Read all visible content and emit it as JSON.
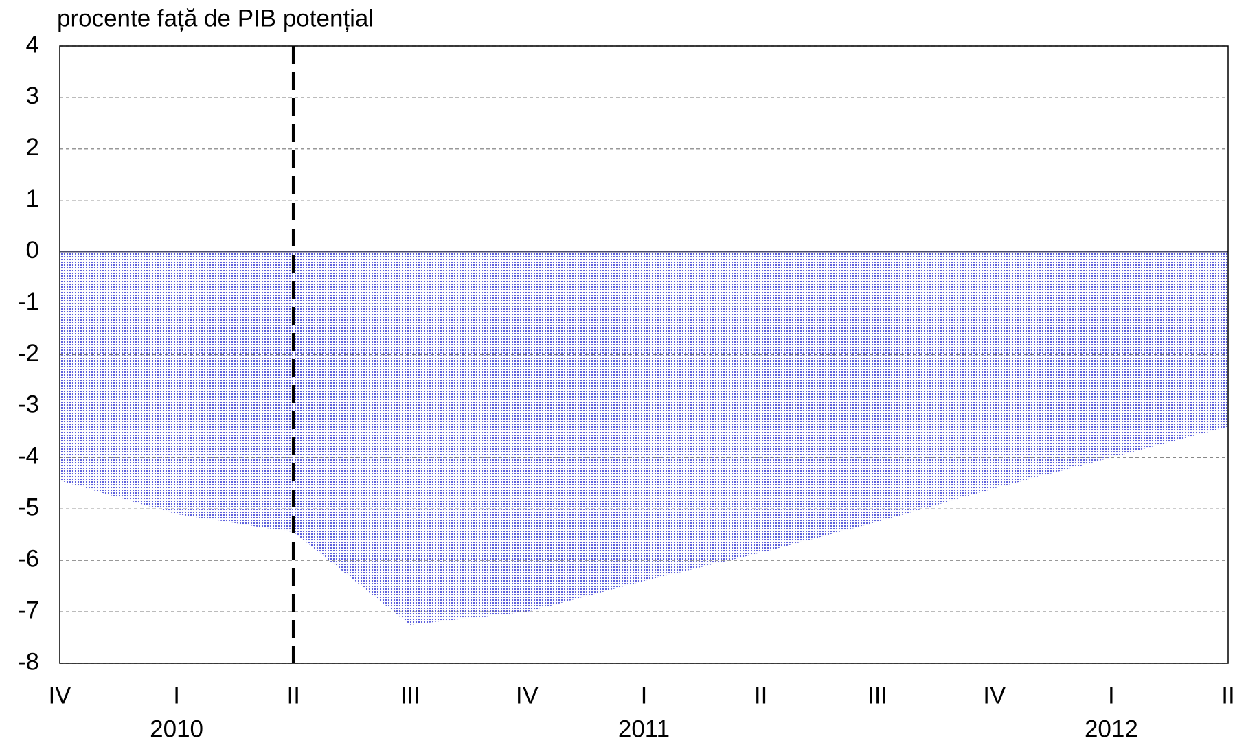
{
  "chart_data": {
    "type": "area",
    "title": "procente față de PIB potențial",
    "categories": [
      "IV",
      "I",
      "II",
      "III",
      "IV",
      "I",
      "II",
      "III",
      "IV",
      "I",
      "II"
    ],
    "year_categories": [
      null,
      "2010",
      null,
      null,
      null,
      "2011",
      null,
      null,
      null,
      "2012",
      null
    ],
    "values": [
      -4.45,
      -5.1,
      -5.45,
      -7.25,
      -7.0,
      -6.4,
      -5.85,
      -5.25,
      -4.6,
      -4.0,
      -3.4
    ],
    "color": "#4b4fd8",
    "ylim": [
      -8,
      4
    ],
    "yticks": [
      -8,
      -7,
      -6,
      -5,
      -4,
      -3,
      -2,
      -1,
      0,
      1,
      2,
      3,
      4
    ],
    "grid": true
  }
}
